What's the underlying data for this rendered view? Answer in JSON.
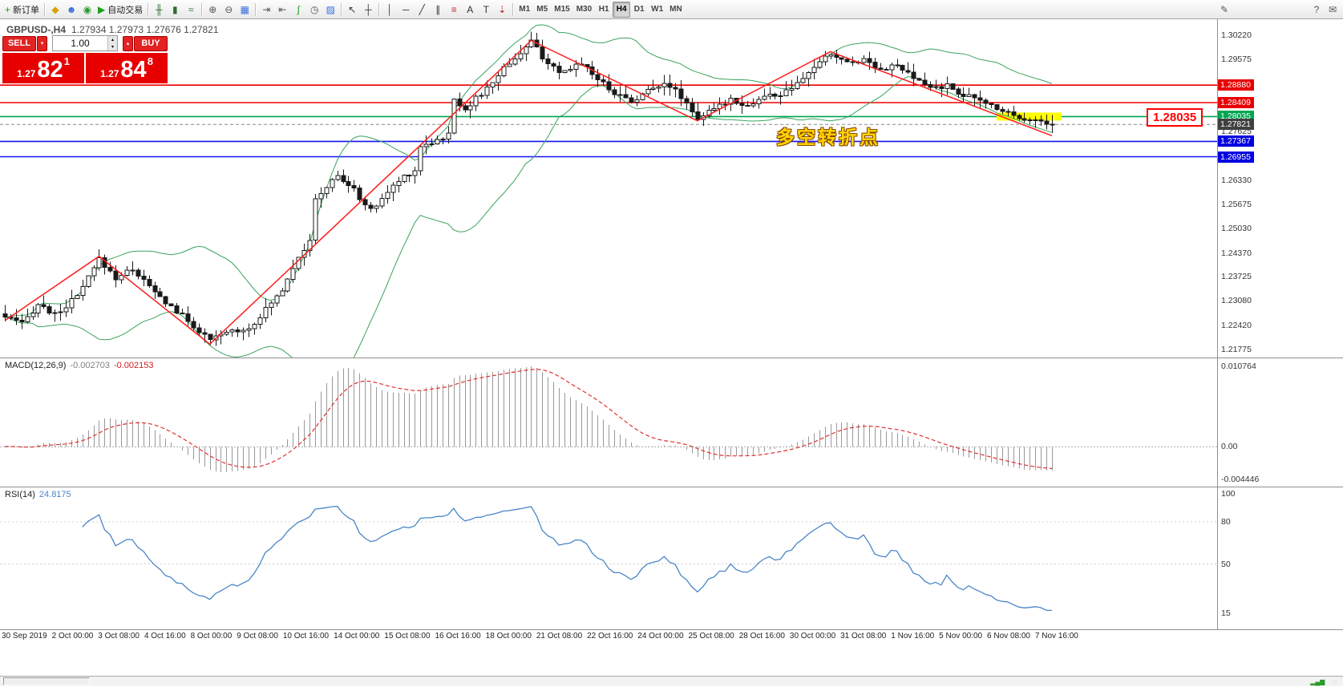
{
  "toolbar": {
    "items": [
      {
        "type": "btn",
        "name": "new-order-button",
        "glyph": "+",
        "color": "#18a018",
        "label": "新订单"
      },
      {
        "type": "sep"
      },
      {
        "type": "btn",
        "name": "market-watch-icon",
        "glyph": "◆",
        "color": "#d8a000"
      },
      {
        "type": "btn",
        "name": "navigator-icon",
        "glyph": "☻",
        "color": "#3a6fd8"
      },
      {
        "type": "btn",
        "name": "terminal-icon",
        "glyph": "◉",
        "color": "#2a9a2a"
      },
      {
        "type": "btn",
        "name": "autotrading-button",
        "glyph": "▶",
        "color": "#18a018",
        "label": "自动交易"
      },
      {
        "type": "sep"
      },
      {
        "type": "btn",
        "name": "bar-chart-icon",
        "glyph": "╫",
        "color": "#2f6f2f"
      },
      {
        "type": "btn",
        "name": "candlestick-chart-icon",
        "glyph": "▮",
        "color": "#2f6f2f"
      },
      {
        "type": "btn",
        "name": "line-chart-icon",
        "glyph": "≈",
        "color": "#2f6f2f"
      },
      {
        "type": "sep"
      },
      {
        "type": "btn",
        "name": "zoom-in-icon",
        "glyph": "⊕",
        "color": "#555555"
      },
      {
        "type": "btn",
        "name": "zoom-out-icon",
        "glyph": "⊖",
        "color": "#555555"
      },
      {
        "type": "btn",
        "name": "tile-windows-icon",
        "glyph": "▦",
        "color": "#3a6fd8"
      },
      {
        "type": "sep"
      },
      {
        "type": "btn",
        "name": "auto-scroll-icon",
        "glyph": "⇥",
        "color": "#555555"
      },
      {
        "type": "btn",
        "name": "chart-shift-icon",
        "glyph": "⇤",
        "color": "#555555"
      },
      {
        "type": "btn",
        "name": "indicators-icon",
        "glyph": "∫",
        "color": "#18a018"
      },
      {
        "type": "btn",
        "name": "periods-icon",
        "glyph": "◷",
        "color": "#555555"
      },
      {
        "type": "btn",
        "name": "templates-icon",
        "glyph": "▨",
        "color": "#3a6fd8"
      },
      {
        "type": "sep"
      },
      {
        "type": "btn",
        "name": "cursor-icon",
        "glyph": "↖",
        "color": "#333333"
      },
      {
        "type": "btn",
        "name": "crosshair-icon",
        "glyph": "┼",
        "color": "#333333"
      },
      {
        "type": "sep"
      },
      {
        "type": "btn",
        "name": "vertical-line-icon",
        "glyph": "│",
        "color": "#333333"
      },
      {
        "type": "btn",
        "name": "horizontal-line-icon",
        "glyph": "─",
        "color": "#333333"
      },
      {
        "type": "btn",
        "name": "trendline-icon",
        "glyph": "╱",
        "color": "#333333"
      },
      {
        "type": "btn",
        "name": "equidistant-channel-icon",
        "glyph": "∥",
        "color": "#333333"
      },
      {
        "type": "btn",
        "name": "fibonacci-icon",
        "glyph": "≡",
        "color": "#b03030"
      },
      {
        "type": "btn",
        "name": "text-icon",
        "glyph": "A",
        "color": "#333333"
      },
      {
        "type": "btn",
        "name": "text-label-icon",
        "glyph": "T",
        "color": "#333333"
      },
      {
        "type": "btn",
        "name": "arrows-icon",
        "glyph": "⇣",
        "color": "#b03030"
      },
      {
        "type": "sep"
      },
      {
        "type": "tf",
        "name": "timeframe-m1-button",
        "text": "M1"
      },
      {
        "type": "tf",
        "name": "timeframe-m5-button",
        "text": "M5"
      },
      {
        "type": "tf",
        "name": "timeframe-m15-button",
        "text": "M15"
      },
      {
        "type": "tf",
        "name": "timeframe-m30-button",
        "text": "M30"
      },
      {
        "type": "tf",
        "name": "timeframe-h1-button",
        "text": "H1"
      },
      {
        "type": "tf",
        "name": "timeframe-h4-button",
        "text": "H4",
        "active": true
      },
      {
        "type": "tf",
        "name": "timeframe-d1-button",
        "text": "D1"
      },
      {
        "type": "tf",
        "name": "timeframe-w1-button",
        "text": "W1"
      },
      {
        "type": "tf",
        "name": "timeframe-mn-button",
        "text": "MN"
      },
      {
        "type": "spacer"
      },
      {
        "type": "btn",
        "name": "edit-icon",
        "glyph": "✎",
        "color": "#555555"
      },
      {
        "type": "spacer",
        "width": 95
      },
      {
        "type": "btn",
        "name": "help-icon",
        "glyph": "?",
        "color": "#555555"
      },
      {
        "type": "btn",
        "name": "feedback-icon",
        "glyph": "✉",
        "color": "#555555"
      }
    ]
  },
  "chart": {
    "symbol": "GBPUSD-,H4",
    "ohlc": "1.27934 1.27973 1.27676 1.27821"
  },
  "trade_panel": {
    "sell_label": "SELL",
    "buy_label": "BUY",
    "volume": "1.00",
    "caret_down": "▾",
    "caret_up": "▴",
    "spin_up": "▴",
    "spin_down": "▾",
    "sell_price": {
      "prefix": "1.27",
      "big": "82",
      "sup": "1"
    },
    "buy_price": {
      "prefix": "1.27",
      "big": "84",
      "sup": "8"
    }
  },
  "annotations": {
    "turning_point_text": "多空转折点",
    "price_callout": "1.28035"
  },
  "price_axis": {
    "plain": [
      {
        "text": "1.30220",
        "price": 1.3022
      },
      {
        "text": "1.29575",
        "price": 1.29575
      },
      {
        "text": "1.27625",
        "price": 1.27625
      },
      {
        "text": "1.26330",
        "price": 1.2633
      },
      {
        "text": "1.25675",
        "price": 1.25675
      },
      {
        "text": "1.25030",
        "price": 1.2503
      },
      {
        "text": "1.24370",
        "price": 1.2437
      },
      {
        "text": "1.23725",
        "price": 1.23725
      },
      {
        "text": "1.23080",
        "price": 1.2308
      },
      {
        "text": "1.22420",
        "price": 1.2242
      },
      {
        "text": "1.21775",
        "price": 1.21775
      }
    ],
    "badges": [
      {
        "text": "1.28880",
        "price": 1.2888,
        "bg": "#e80000"
      },
      {
        "text": "1.28409",
        "price": 1.28409,
        "bg": "#e80000"
      },
      {
        "text": "1.28035",
        "price": 1.28035,
        "bg": "#00a651"
      },
      {
        "text": "1.27821",
        "price": 1.27821,
        "bg": "#404040"
      },
      {
        "text": "1.27367",
        "price": 1.27367,
        "bg": "#0000e0"
      },
      {
        "text": "1.26955",
        "price": 1.26955,
        "bg": "#0000e0"
      }
    ]
  },
  "macd": {
    "name": "MACD(12,26,9)",
    "main_value": "-0.002703",
    "signal_value": "-0.002153",
    "axis": [
      {
        "text": "0.010764",
        "value": 0.010764
      },
      {
        "text": "0.00",
        "value": 0
      },
      {
        "text": "-0.004446",
        "value": -0.004446
      }
    ]
  },
  "rsi": {
    "name": "RSI(14)",
    "value": "24.8175",
    "axis": [
      {
        "text": "100",
        "value": 100
      },
      {
        "text": "80",
        "value": 80
      },
      {
        "text": "50",
        "value": 50
      },
      {
        "text": "15",
        "value": 15
      }
    ],
    "levels": [
      80,
      50
    ]
  },
  "time_axis": [
    "30 Sep 2019",
    "2 Oct 00:00",
    "3 Oct 08:00",
    "4 Oct 16:00",
    "8 Oct 00:00",
    "9 Oct 08:00",
    "10 Oct 16:00",
    "14 Oct 00:00",
    "15 Oct 08:00",
    "16 Oct 16:00",
    "18 Oct 00:00",
    "21 Oct 08:00",
    "22 Oct 16:00",
    "24 Oct 00:00",
    "25 Oct 08:00",
    "28 Oct 16:00",
    "30 Oct 00:00",
    "31 Oct 08:00",
    "1 Nov 16:00",
    "5 Nov 00:00",
    "6 Nov 08:00",
    "7 Nov 16:00"
  ],
  "status_bar": {
    "icons": [
      {
        "name": "signal-bars-icon",
        "glyph": "▂▄▆",
        "color": "#2a9a2a"
      },
      {
        "name": "connection-icon",
        "glyph": "◌",
        "color": "#888888"
      }
    ]
  },
  "chart_data": {
    "type": "candlestick",
    "symbol": "GBPUSD",
    "timeframe": "H4",
    "bars": 190,
    "price_range": [
      1.2156,
      1.3065
    ],
    "last_close": 1.27821,
    "price_waypoints": [
      [
        0,
        1.2265
      ],
      [
        3,
        1.2245
      ],
      [
        6,
        1.23
      ],
      [
        9,
        1.227
      ],
      [
        13,
        1.232
      ],
      [
        17,
        1.242
      ],
      [
        20,
        1.237
      ],
      [
        23,
        1.2395
      ],
      [
        27,
        1.233
      ],
      [
        31,
        1.228
      ],
      [
        34,
        1.224
      ],
      [
        37,
        1.22
      ],
      [
        40,
        1.2225
      ],
      [
        44,
        1.2235
      ],
      [
        47,
        1.2285
      ],
      [
        50,
        1.234
      ],
      [
        53,
        1.243
      ],
      [
        55,
        1.2465
      ],
      [
        56,
        1.258
      ],
      [
        58,
        1.2615
      ],
      [
        60,
        1.2645
      ],
      [
        63,
        1.2605
      ],
      [
        66,
        1.255
      ],
      [
        69,
        1.26
      ],
      [
        72,
        1.2645
      ],
      [
        74,
        1.2658
      ],
      [
        75,
        1.2725
      ],
      [
        78,
        1.274
      ],
      [
        80,
        1.2755
      ],
      [
        81,
        1.285
      ],
      [
        83,
        1.2825
      ],
      [
        87,
        1.2878
      ],
      [
        90,
        1.2935
      ],
      [
        93,
        1.2975
      ],
      [
        95,
        1.3005
      ],
      [
        97,
        1.2965
      ],
      [
        100,
        1.2915
      ],
      [
        104,
        1.295
      ],
      [
        107,
        1.2905
      ],
      [
        110,
        1.2868
      ],
      [
        113,
        1.2845
      ],
      [
        116,
        1.2872
      ],
      [
        119,
        1.2898
      ],
      [
        122,
        1.2858
      ],
      [
        125,
        1.28
      ],
      [
        128,
        1.2822
      ],
      [
        131,
        1.2852
      ],
      [
        134,
        1.2832
      ],
      [
        137,
        1.2858
      ],
      [
        140,
        1.2862
      ],
      [
        143,
        1.2888
      ],
      [
        146,
        1.2938
      ],
      [
        149,
        1.2972
      ],
      [
        152,
        1.2948
      ],
      [
        155,
        1.2958
      ],
      [
        158,
        1.2932
      ],
      [
        161,
        1.294
      ],
      [
        164,
        1.2905
      ],
      [
        167,
        1.2882
      ],
      [
        170,
        1.2885
      ],
      [
        173,
        1.2862
      ],
      [
        176,
        1.2845
      ],
      [
        179,
        1.2828
      ],
      [
        182,
        1.2808
      ],
      [
        185,
        1.2795
      ],
      [
        188,
        1.2788
      ],
      [
        189,
        1.2782
      ]
    ],
    "zigzag": [
      [
        0,
        1.2255
      ],
      [
        17,
        1.2428
      ],
      [
        37,
        1.2192
      ],
      [
        95,
        1.3008
      ],
      [
        125,
        1.2792
      ],
      [
        149,
        1.2978
      ],
      [
        189,
        1.2752
      ]
    ],
    "hlines": [
      {
        "price": 1.2888,
        "color": "#f00000",
        "width": 1.6
      },
      {
        "price": 1.28409,
        "color": "#f00000",
        "width": 1.6
      },
      {
        "price": 1.28035,
        "color": "#00a651",
        "width": 1.6
      },
      {
        "price": 1.27821,
        "color": "#888888",
        "width": 1,
        "dash": true
      },
      {
        "price": 1.27367,
        "color": "#1414f0",
        "width": 1.6
      },
      {
        "price": 1.26955,
        "color": "#1414f0",
        "width": 1.6
      }
    ],
    "highlight": {
      "price": 1.28035,
      "bar_start": 179,
      "bar_end": 189,
      "color": "#ffff00"
    },
    "bollinger": {
      "period": 20,
      "deviation": 2,
      "color": "#3aa35c"
    },
    "macd": {
      "fast": 12,
      "slow": 26,
      "signal": 9,
      "histogram_color": "#999999",
      "signal_color": "#e03030",
      "axis_max": 0.010764,
      "axis_min": -0.004446,
      "current_main": -0.002703,
      "current_signal": -0.002153
    },
    "rsi": {
      "period": 14,
      "color": "#4a86c8",
      "current": 24.8175
    }
  }
}
